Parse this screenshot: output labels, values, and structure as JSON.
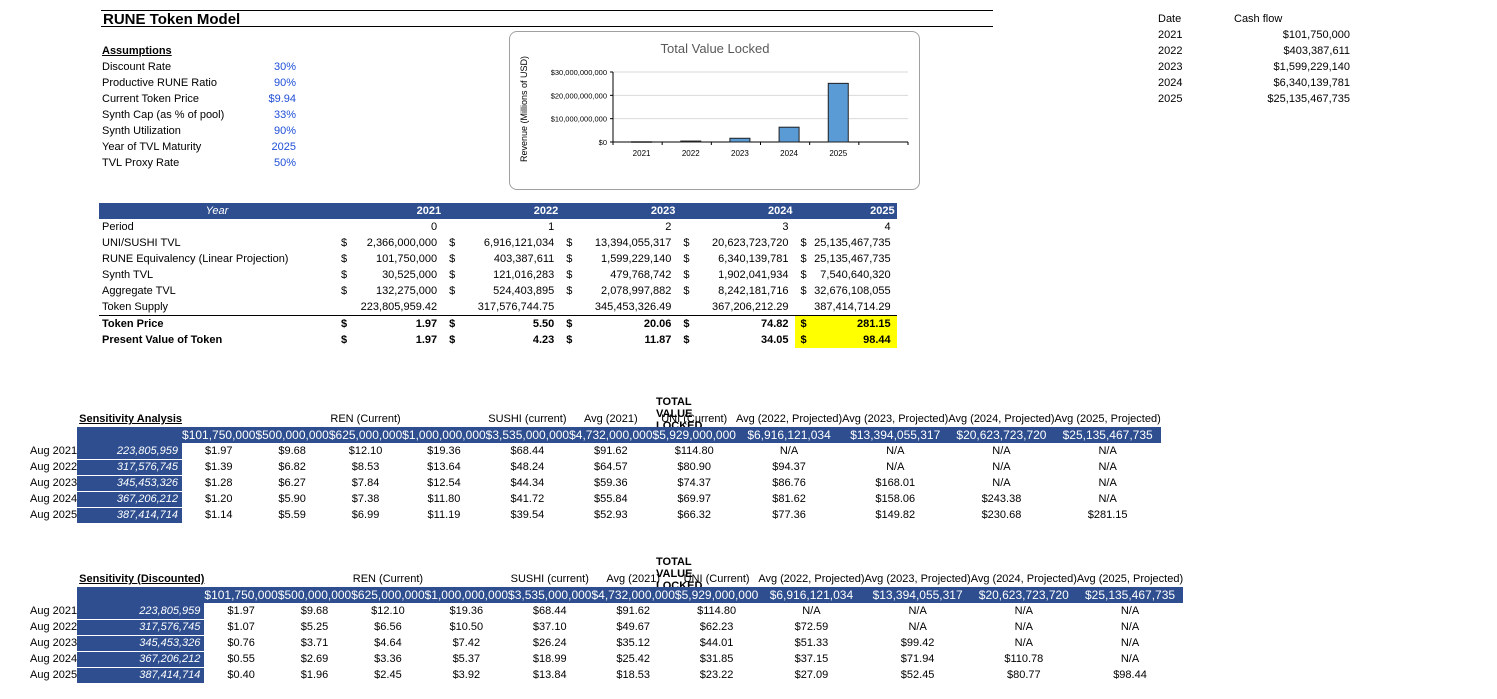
{
  "title": "RUNE Token Model",
  "assumptions": {
    "heading": "Assumptions",
    "rows": [
      {
        "label": "Discount Rate",
        "value": "30%"
      },
      {
        "label": "Productive RUNE Ratio",
        "value": "90%"
      },
      {
        "label": "Current Token Price",
        "value": "$9.94"
      },
      {
        "label": "Synth Cap (as % of pool)",
        "value": "33%"
      },
      {
        "label": "Synth Utilization",
        "value": "90%"
      },
      {
        "label": "Year of TVL Maturity",
        "value": "2025"
      },
      {
        "label": "TVL Proxy Rate",
        "value": "50%"
      }
    ]
  },
  "chart_data": {
    "type": "bar",
    "title": "Total Value Locked",
    "ylabel": "Revenue (Millions of USD)",
    "xlabel": "",
    "categories": [
      "2021",
      "2022",
      "2023",
      "2024",
      "2025"
    ],
    "values": [
      101750000,
      403387611,
      1599229140,
      6340139781,
      25135467735
    ],
    "ylim": [
      0,
      30000000000
    ],
    "yticks": [
      "$0",
      "$10,000,000,000",
      "$20,000,000,000",
      "$30,000,000,000"
    ],
    "grid": true,
    "colors": {
      "bar": "#5b9bd5",
      "bar_stroke": "#1f1f1f"
    }
  },
  "cashflow": {
    "headers": {
      "date": "Date",
      "cash": "Cash flow"
    },
    "rows": [
      {
        "date": "2021",
        "cash": "$101,750,000"
      },
      {
        "date": "2022",
        "cash": "$403,387,611"
      },
      {
        "date": "2023",
        "cash": "$1,599,229,140"
      },
      {
        "date": "2024",
        "cash": "$6,340,139,781"
      },
      {
        "date": "2025",
        "cash": "$25,135,467,735"
      }
    ]
  },
  "model": {
    "header": {
      "label": "Year",
      "years": [
        "2021",
        "2022",
        "2023",
        "2024",
        "2025"
      ]
    },
    "rows": [
      {
        "label": "Period",
        "dollar": false,
        "cells": [
          "0",
          "1",
          "2",
          "3",
          "4"
        ]
      },
      {
        "label": "UNI/SUSHI TVL",
        "dollar": true,
        "cells": [
          "2,366,000,000",
          "6,916,121,034",
          "13,394,055,317",
          "20,623,723,720",
          "25,135,467,735"
        ]
      },
      {
        "label": "RUNE Equivalency (Linear Projection)",
        "dollar": true,
        "cells": [
          "101,750,000",
          "403,387,611",
          "1,599,229,140",
          "6,340,139,781",
          "25,135,467,735"
        ]
      },
      {
        "label": "Synth TVL",
        "dollar": true,
        "cells": [
          "30,525,000",
          "121,016,283",
          "479,768,742",
          "1,902,041,934",
          "7,540,640,320"
        ]
      },
      {
        "label": "Aggregate TVL",
        "dollar": true,
        "cells": [
          "132,275,000",
          "524,403,895",
          "2,078,997,882",
          "8,242,181,716",
          "32,676,108,055"
        ]
      },
      {
        "label": "Token Supply",
        "dollar": false,
        "cells": [
          "223,805,959.42",
          "317,576,744.75",
          "345,453,326.49",
          "367,206,212.29",
          "387,414,714.29"
        ]
      },
      {
        "label": "Token Price",
        "dollar": true,
        "bold": true,
        "cells": [
          "1.97",
          "5.50",
          "20.06",
          "74.82",
          "281.15"
        ]
      },
      {
        "label": "Present Value of Token",
        "dollar": true,
        "bold": true,
        "cells": [
          "1.97",
          "4.23",
          "11.87",
          "34.05",
          "98.44"
        ]
      }
    ],
    "dollar_sign": "$"
  },
  "sensitivity": {
    "caption": "TOTAL VALUE LOCKED",
    "heading": "Sensitivity Analysis",
    "col_labels": [
      "",
      "",
      "REN (Current)",
      "",
      "SUSHI (current)",
      "Avg (2021)",
      "UNI (Current)",
      "Avg (2022, Projected)",
      "Avg (2023, Projected)",
      "Avg (2024, Projected)",
      "Avg (2025, Projected)"
    ],
    "tvl": [
      "$101,750,000",
      "$500,000,000",
      "$625,000,000",
      "$1,000,000,000",
      "$3,535,000,000",
      "$4,732,000,000",
      "$5,929,000,000",
      "$6,916,121,034",
      "$13,394,055,317",
      "$20,623,723,720",
      "$25,135,467,735"
    ],
    "rows": [
      {
        "year": "Aug 2021",
        "supply": "223,805,959",
        "vals": [
          "$1.97",
          "$9.68",
          "$12.10",
          "$19.36",
          "$68.44",
          "$91.62",
          "$114.80",
          "N/A",
          "N/A",
          "N/A",
          "N/A"
        ]
      },
      {
        "year": "Aug 2022",
        "supply": "317,576,745",
        "vals": [
          "$1.39",
          "$6.82",
          "$8.53",
          "$13.64",
          "$48.24",
          "$64.57",
          "$80.90",
          "$94.37",
          "N/A",
          "N/A",
          "N/A"
        ]
      },
      {
        "year": "Aug 2023",
        "supply": "345,453,326",
        "vals": [
          "$1.28",
          "$6.27",
          "$7.84",
          "$12.54",
          "$44.34",
          "$59.36",
          "$74.37",
          "$86.76",
          "$168.01",
          "N/A",
          "N/A"
        ]
      },
      {
        "year": "Aug 2024",
        "supply": "367,206,212",
        "vals": [
          "$1.20",
          "$5.90",
          "$7.38",
          "$11.80",
          "$41.72",
          "$55.84",
          "$69.97",
          "$81.62",
          "$158.06",
          "$243.38",
          "N/A"
        ]
      },
      {
        "year": "Aug 2025",
        "supply": "387,414,714",
        "vals": [
          "$1.14",
          "$5.59",
          "$6.99",
          "$11.19",
          "$39.54",
          "$52.93",
          "$66.32",
          "$77.36",
          "$149.82",
          "$230.68",
          "$281.15"
        ]
      }
    ]
  },
  "sensitivity_discounted": {
    "caption": "TOTAL VALUE LOCKED",
    "heading": "Sensitivity (Discounted)",
    "col_labels": [
      "",
      "",
      "REN (Current)",
      "",
      "SUSHI (current)",
      "Avg (2021)",
      "UNI (Current)",
      "Avg (2022, Projected)",
      "Avg (2023, Projected)",
      "Avg (2024, Projected)",
      "Avg (2025, Projected)"
    ],
    "tvl": [
      "$101,750,000",
      "$500,000,000",
      "$625,000,000",
      "$1,000,000,000",
      "$3,535,000,000",
      "$4,732,000,000",
      "$5,929,000,000",
      "$6,916,121,034",
      "$13,394,055,317",
      "$20,623,723,720",
      "$25,135,467,735"
    ],
    "rows": [
      {
        "year": "Aug 2021",
        "supply": "223,805,959",
        "vals": [
          "$1.97",
          "$9.68",
          "$12.10",
          "$19.36",
          "$68.44",
          "$91.62",
          "$114.80",
          "N/A",
          "N/A",
          "N/A",
          "N/A"
        ]
      },
      {
        "year": "Aug 2022",
        "supply": "317,576,745",
        "vals": [
          "$1.07",
          "$5.25",
          "$6.56",
          "$10.50",
          "$37.10",
          "$49.67",
          "$62.23",
          "$72.59",
          "N/A",
          "N/A",
          "N/A"
        ]
      },
      {
        "year": "Aug 2023",
        "supply": "345,453,326",
        "vals": [
          "$0.76",
          "$3.71",
          "$4.64",
          "$7.42",
          "$26.24",
          "$35.12",
          "$44.01",
          "$51.33",
          "$99.42",
          "N/A",
          "N/A"
        ]
      },
      {
        "year": "Aug 2024",
        "supply": "367,206,212",
        "vals": [
          "$0.55",
          "$2.69",
          "$3.36",
          "$5.37",
          "$18.99",
          "$25.42",
          "$31.85",
          "$37.15",
          "$71.94",
          "$110.78",
          "N/A"
        ]
      },
      {
        "year": "Aug 2025",
        "supply": "387,414,714",
        "vals": [
          "$0.40",
          "$1.96",
          "$2.45",
          "$3.92",
          "$13.84",
          "$18.53",
          "$23.22",
          "$27.09",
          "$52.45",
          "$80.77",
          "$98.44"
        ]
      }
    ]
  }
}
